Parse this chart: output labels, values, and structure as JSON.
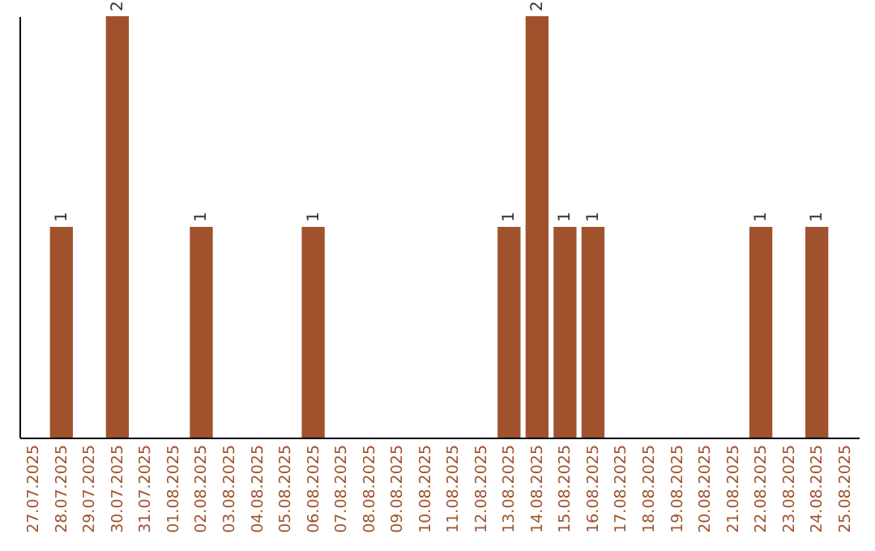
{
  "chart_data": {
    "type": "bar",
    "categories": [
      "27.07.2025",
      "28.07.2025",
      "29.07.2025",
      "30.07.2025",
      "31.07.2025",
      "01.08.2025",
      "02.08.2025",
      "03.08.2025",
      "04.08.2025",
      "05.08.2025",
      "06.08.2025",
      "07.08.2025",
      "08.08.2025",
      "09.08.2025",
      "10.08.2025",
      "11.08.2025",
      "12.08.2025",
      "13.08.2025",
      "14.08.2025",
      "15.08.2025",
      "16.08.2025",
      "17.08.2025",
      "18.08.2025",
      "19.08.2025",
      "20.08.2025",
      "21.08.2025",
      "22.08.2025",
      "23.08.2025",
      "24.08.2025",
      "25.08.2025"
    ],
    "values": [
      0,
      1,
      0,
      2,
      0,
      0,
      1,
      0,
      0,
      0,
      1,
      0,
      0,
      0,
      0,
      0,
      0,
      1,
      2,
      1,
      1,
      0,
      0,
      0,
      0,
      0,
      1,
      0,
      1,
      0
    ],
    "value_labels": [
      null,
      "1",
      null,
      "2",
      null,
      null,
      "1",
      null,
      null,
      null,
      "1",
      null,
      null,
      null,
      null,
      null,
      null,
      "1",
      "2",
      "1",
      "1",
      null,
      null,
      null,
      null,
      null,
      "1",
      null,
      "1",
      null
    ],
    "color": "#a0522d",
    "tick_labels": "x"
  }
}
